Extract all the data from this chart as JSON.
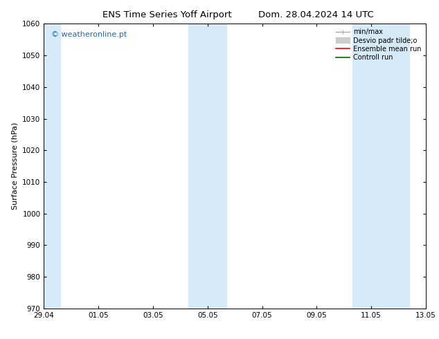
{
  "title_left": "ENS Time Series Yoff Airport",
  "title_right": "Dom. 28.04.2024 14 UTC",
  "ylabel": "Surface Pressure (hPa)",
  "ylim": [
    970,
    1060
  ],
  "yticks": [
    970,
    980,
    990,
    1000,
    1010,
    1020,
    1030,
    1040,
    1050,
    1060
  ],
  "xtick_labels": [
    "29.04",
    "01.05",
    "03.05",
    "05.05",
    "07.05",
    "09.05",
    "11.05",
    "13.05"
  ],
  "xtick_positions": [
    0,
    2,
    4,
    6,
    8,
    10,
    12,
    14
  ],
  "x_total": 14,
  "shaded_regions": [
    {
      "x_start": 0.0,
      "x_end": 0.6
    },
    {
      "x_start": 5.3,
      "x_end": 6.7
    },
    {
      "x_start": 11.3,
      "x_end": 13.4
    }
  ],
  "shade_color": "#d6eaf8",
  "watermark_text": "© weatheronline.pt",
  "watermark_color": "#1a6bbf",
  "background_color": "#ffffff",
  "title_fontsize": 9.5,
  "label_fontsize": 8,
  "tick_fontsize": 7.5,
  "legend_fontsize": 7,
  "watermark_fontsize": 8
}
